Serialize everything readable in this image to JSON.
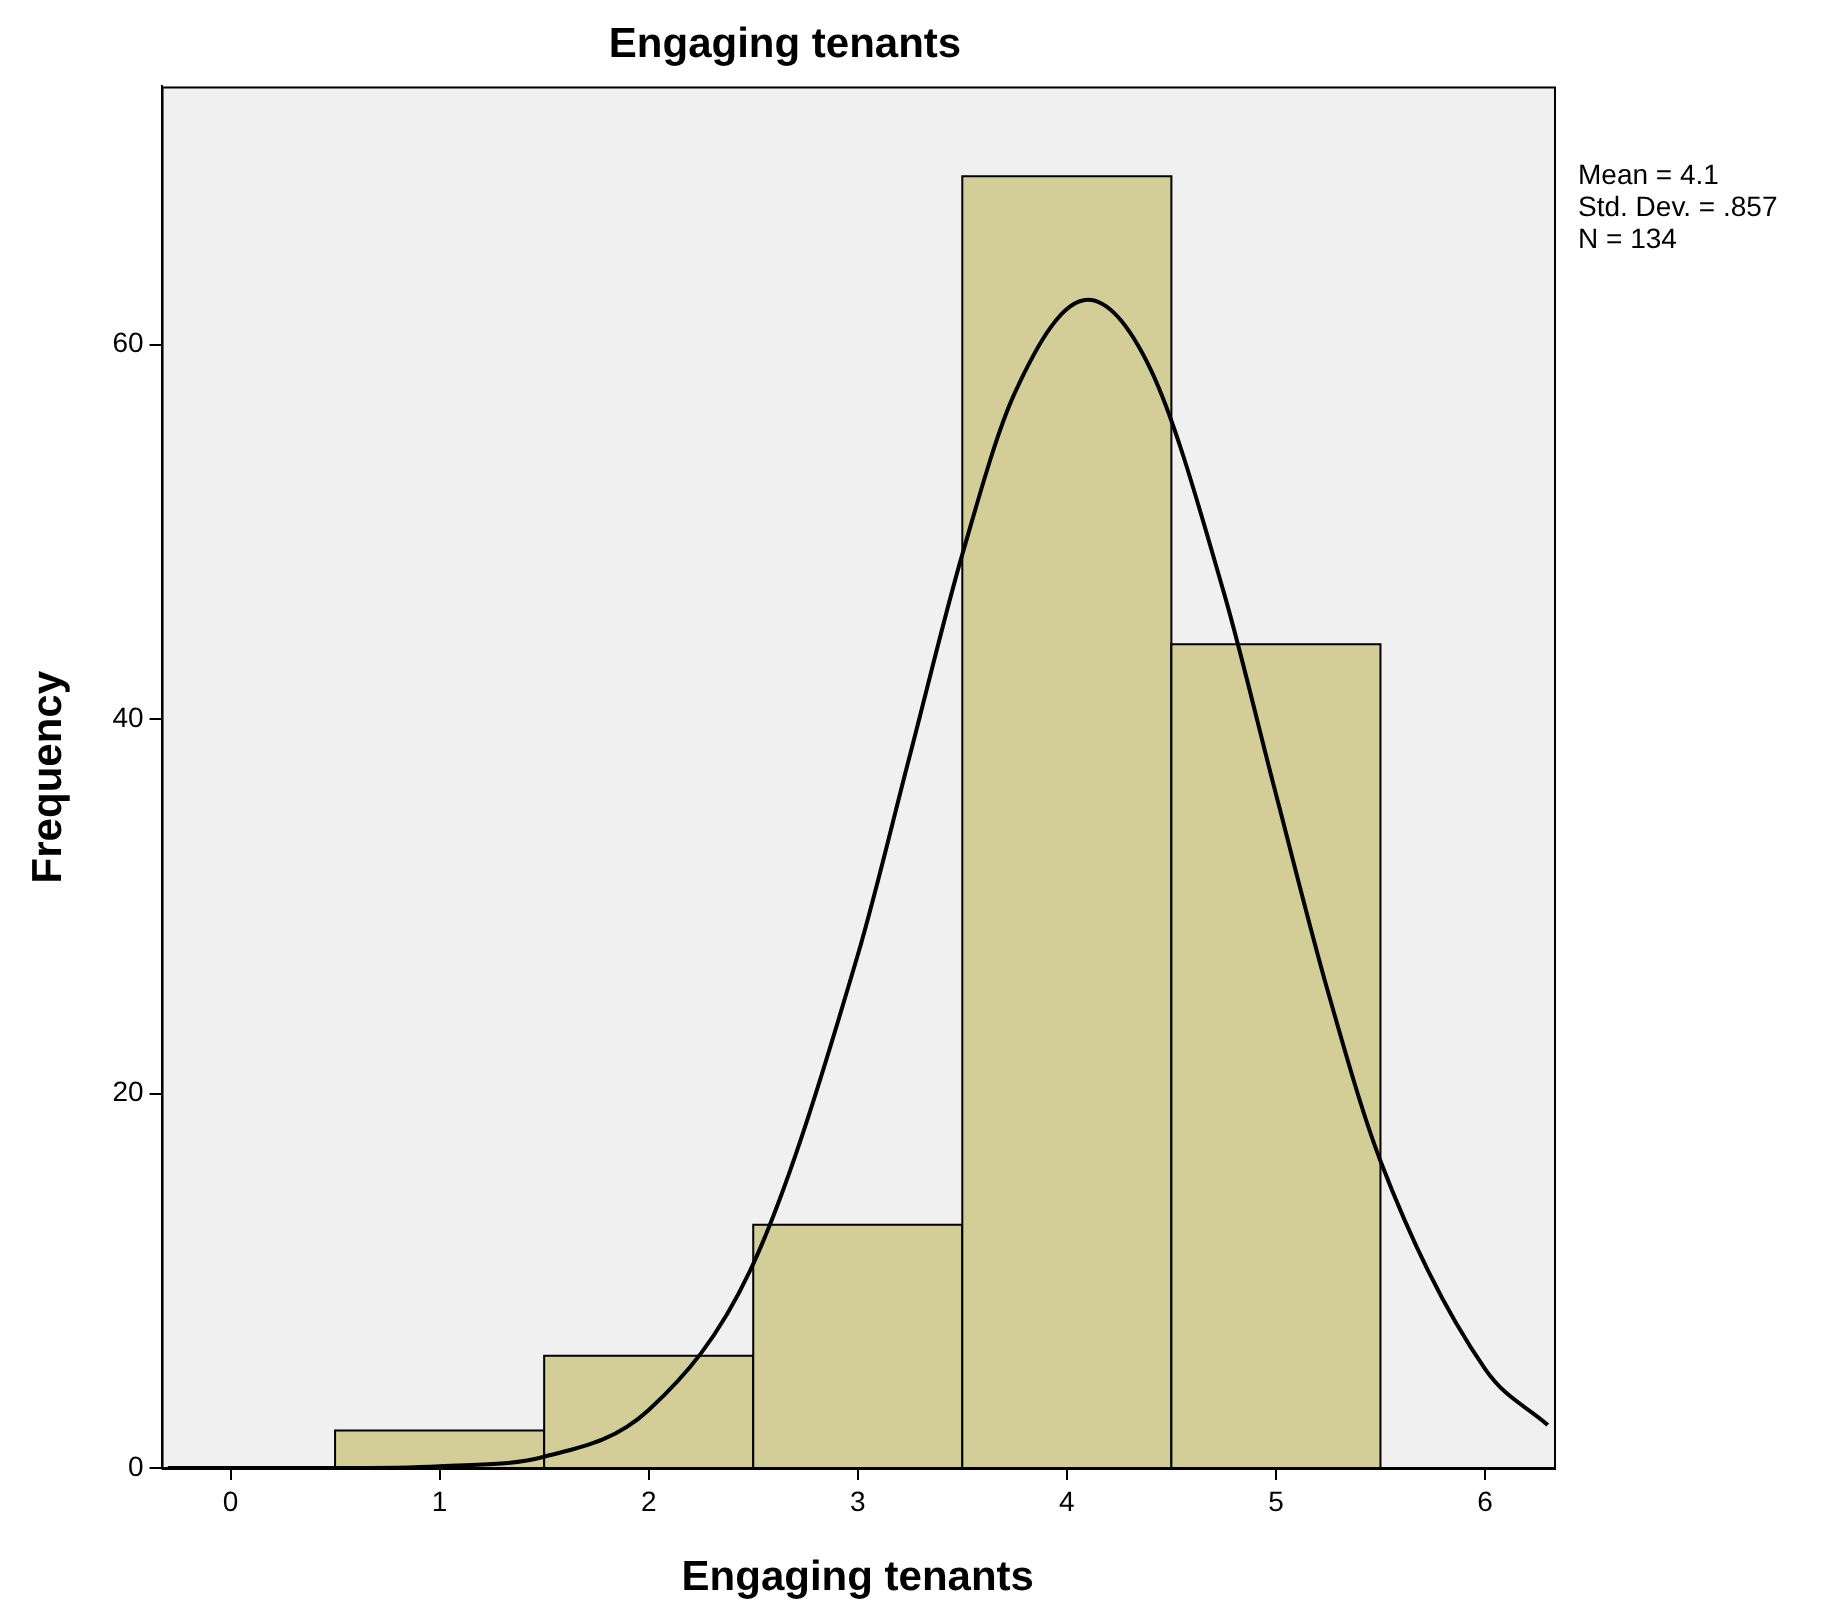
{
  "chart_data": {
    "type": "histogram",
    "title": "Engaging tenants",
    "xlabel": "Engaging tenants",
    "ylabel": "Frequency",
    "bins": [
      0.5,
      1.5,
      2.5,
      3.5,
      4.5,
      5.5
    ],
    "values": [
      2,
      6,
      13,
      69,
      44
    ],
    "color": "#d3ce97",
    "series": [
      {
        "type": "line",
        "color": "#000000",
        "x": [
          -0.3,
          0,
          0.5,
          1,
          1.5,
          2,
          2.5,
          3,
          3.25,
          3.5,
          3.75,
          4.1,
          4.4,
          4.75,
          5,
          5.25,
          5.5,
          6,
          6.3
        ],
        "values": [
          0,
          0,
          0,
          0.1,
          0.6,
          3.1,
          10.9,
          27.4,
          38.1,
          48.8,
          57.4,
          62.4,
          58.7,
          46.8,
          36,
          25.4,
          16.4,
          5.3,
          2.3
        ]
      }
    ],
    "xlim": [
      -0.33,
      6.33
    ],
    "ylim": [
      0,
      73.8
    ],
    "xticks": [
      0,
      1,
      2,
      3,
      4,
      5,
      6
    ],
    "yticks": [
      0,
      20,
      40,
      60
    ],
    "grid": false,
    "legend": false,
    "marker": "none",
    "annotations": [
      "Mean = 4.1",
      "Std. Dev. = .857",
      "N = 134"
    ]
  }
}
